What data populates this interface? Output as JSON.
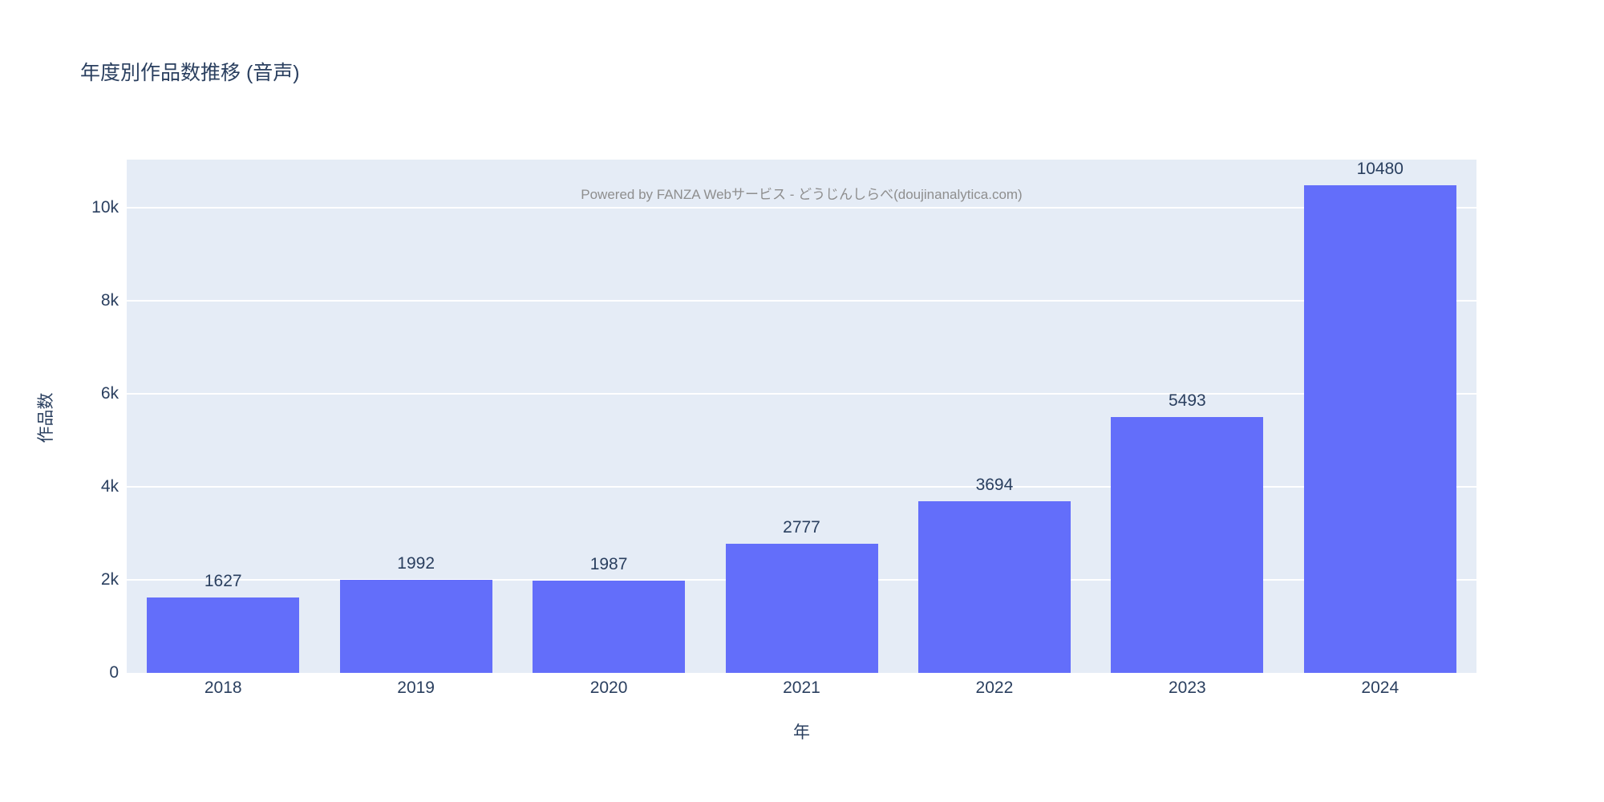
{
  "watermark": {
    "text": "Powered by FANZA Webサービス - どうじんしらべ(doujinanalytica.com)"
  },
  "colors": {
    "bar": "#636EFA",
    "plot_background": "#E5ECF6",
    "grid": "#FFFFFF",
    "text": "#2A3F5F",
    "watermark": "#8E8E8E"
  },
  "chart_data": {
    "type": "bar",
    "title": "年度別作品数推移 (音声)",
    "xlabel": "年",
    "ylabel": "作品数",
    "categories": [
      "2018",
      "2019",
      "2020",
      "2021",
      "2022",
      "2023",
      "2024"
    ],
    "values": [
      1627,
      1992,
      1987,
      2777,
      3694,
      5493,
      10480
    ],
    "bar_labels": [
      "1627",
      "1992",
      "1987",
      "2777",
      "3694",
      "5493",
      "10480"
    ],
    "ylim": [
      0,
      11034
    ],
    "yticks": [
      2000,
      4000,
      6000,
      8000,
      10000
    ],
    "ytick_labels": [
      "2k",
      "4k",
      "6k",
      "8k",
      "10k"
    ],
    "ytick_zero_label": "0",
    "grid": true,
    "legend_position": "none"
  }
}
